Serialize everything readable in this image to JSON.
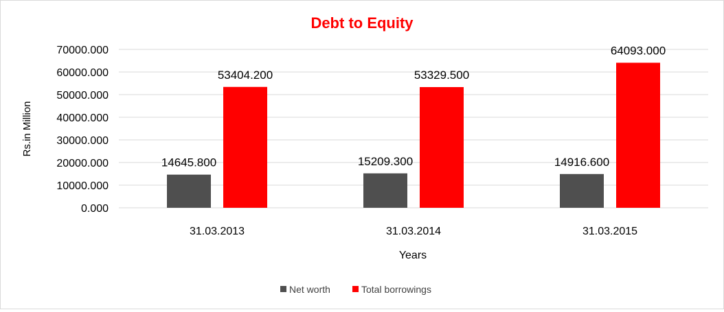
{
  "chart_data": {
    "type": "bar",
    "title": "Debt to Equity",
    "xlabel": "Years",
    "ylabel": "Rs.in Million",
    "categories": [
      "31.03.2013",
      "31.03.2014",
      "31.03.2015"
    ],
    "series": [
      {
        "name": "Net worth",
        "color": "#4f4f4f",
        "values": [
          14645.8,
          15209.3,
          14916.6
        ],
        "labels": [
          "14645.800",
          "15209.300",
          "14916.600"
        ]
      },
      {
        "name": "Total borrowings",
        "color": "#ff0000",
        "values": [
          53404.2,
          53329.5,
          64093.0
        ],
        "labels": [
          "53404.200",
          "53329.500",
          "64093.000"
        ]
      }
    ],
    "ylim": [
      0,
      70000
    ],
    "yticks": [
      0,
      10000,
      20000,
      30000,
      40000,
      50000,
      60000,
      70000
    ],
    "ytick_labels": [
      "0.000",
      "10000.000",
      "20000.000",
      "30000.000",
      "40000.000",
      "50000.000",
      "60000.000",
      "70000.000"
    ],
    "grid": true,
    "legend_position": "bottom",
    "title_color": "#ff0000",
    "gridline_color": "#d9d9d9"
  }
}
